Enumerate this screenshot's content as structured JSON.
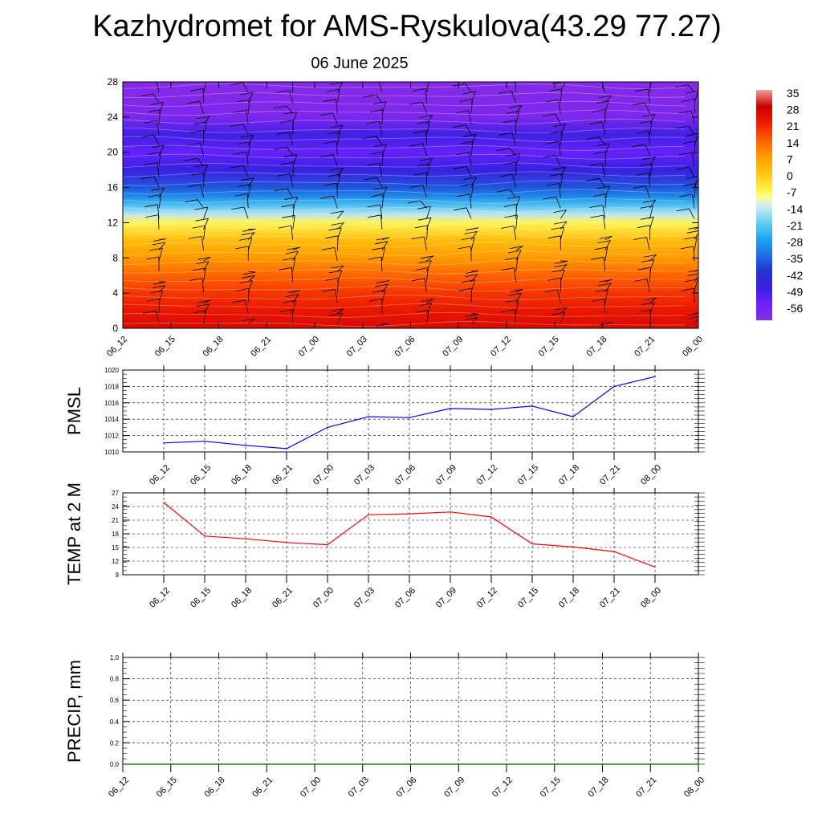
{
  "title": "Kazhydromet for AMS-Ryskulova(43.29 77.27)",
  "subtitle": "06 June 2025",
  "chart_data": [
    {
      "type": "heatmap",
      "ylim": [
        0,
        28
      ],
      "yticks": [
        "0",
        "4",
        "8",
        "12",
        "16",
        "20",
        "24",
        "28"
      ],
      "categories": [
        "06_12",
        "06_15",
        "06_18",
        "06_21",
        "07_00",
        "07_03",
        "07_06",
        "07_09",
        "07_12",
        "07_15",
        "07_18",
        "07_21",
        "08_00"
      ],
      "colorbar_labels": [
        "35",
        "28",
        "21",
        "14",
        "7",
        "0",
        "-7",
        "-14",
        "-21",
        "-28",
        "-35",
        "-42",
        "-49",
        "-56"
      ],
      "colorbar_stops": [
        {
          "value": -63,
          "color": "#8a2be2"
        },
        {
          "value": -56,
          "color": "#6b21ff"
        },
        {
          "value": -49,
          "color": "#3a20e0"
        },
        {
          "value": -42,
          "color": "#2233cc"
        },
        {
          "value": -35,
          "color": "#1e70e8"
        },
        {
          "value": -28,
          "color": "#20a8f0"
        },
        {
          "value": -21,
          "color": "#6cd0f4"
        },
        {
          "value": -14,
          "color": "#d6ecf2"
        },
        {
          "value": -10,
          "color": "#ffff80"
        },
        {
          "value": -7,
          "color": "#ffee44"
        },
        {
          "value": 0,
          "color": "#ffc20e"
        },
        {
          "value": 7,
          "color": "#ff9a00"
        },
        {
          "value": 14,
          "color": "#ff5a00"
        },
        {
          "value": 21,
          "color": "#f01a00"
        },
        {
          "value": 28,
          "color": "#c80000"
        },
        {
          "value": 35,
          "color": "#f0a0a0"
        }
      ],
      "temperature_profile": [
        {
          "y": 0,
          "t": 25
        },
        {
          "y": 2,
          "t": 22
        },
        {
          "y": 4,
          "t": 18
        },
        {
          "y": 6,
          "t": 13
        },
        {
          "y": 8,
          "t": 7
        },
        {
          "y": 10,
          "t": 1
        },
        {
          "y": 12,
          "t": -8
        },
        {
          "y": 13,
          "t": -16
        },
        {
          "y": 14,
          "t": -24
        },
        {
          "y": 15,
          "t": -32
        },
        {
          "y": 16,
          "t": -38
        },
        {
          "y": 18,
          "t": -49
        },
        {
          "y": 20,
          "t": -55
        },
        {
          "y": 22,
          "t": -50
        },
        {
          "y": 24,
          "t": -60
        },
        {
          "y": 28,
          "t": -62
        }
      ],
      "wind_barbs": "present"
    },
    {
      "type": "line",
      "ylabel": "PMSL",
      "ylim": [
        1010,
        1020
      ],
      "yticks": [
        "1010",
        "1012",
        "1014",
        "1016",
        "1018",
        "1020"
      ],
      "categories": [
        "06_12",
        "06_15",
        "06_18",
        "06_21",
        "07_00",
        "07_03",
        "07_06",
        "07_09",
        "07_12",
        "07_15",
        "07_18",
        "07_21",
        "08_00"
      ],
      "values": [
        1011.1,
        1011.3,
        1010.8,
        1010.4,
        1013.0,
        1014.3,
        1014.2,
        1015.3,
        1015.2,
        1015.6,
        1014.3,
        1018.0,
        1019.2
      ],
      "color": "#0000ff",
      "grid": true
    },
    {
      "type": "line",
      "ylabel": "TEMP at 2 M",
      "ylim": [
        9,
        27
      ],
      "yticks": [
        "9",
        "12",
        "15",
        "18",
        "21",
        "24",
        "27"
      ],
      "categories": [
        "06_12",
        "06_15",
        "06_18",
        "06_21",
        "07_00",
        "07_03",
        "07_06",
        "07_09",
        "07_12",
        "07_15",
        "07_18",
        "07_21",
        "08_00"
      ],
      "values": [
        24.9,
        17.5,
        16.9,
        16.1,
        15.6,
        22.2,
        22.4,
        22.8,
        21.7,
        15.8,
        15.1,
        14.1,
        10.7
      ],
      "color": "#ff0000",
      "grid": true
    },
    {
      "type": "line",
      "ylabel": "PRECIP, mm",
      "ylim": [
        0,
        1
      ],
      "yticks": [
        "0.0",
        "0.2",
        "0.4",
        "0.6",
        "0.8",
        "1.0"
      ],
      "categories": [
        "06_12",
        "06_15",
        "06_18",
        "06_21",
        "07_00",
        "07_03",
        "07_06",
        "07_09",
        "07_12",
        "07_15",
        "07_18",
        "07_21",
        "08_00"
      ],
      "values": [
        0,
        0,
        0,
        0,
        0,
        0,
        0,
        0,
        0,
        0,
        0,
        0,
        0
      ],
      "color": "#006400",
      "grid": true
    }
  ]
}
